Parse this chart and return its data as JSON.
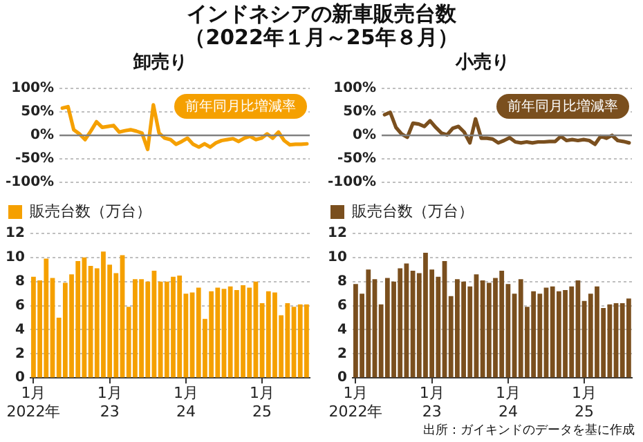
{
  "chart_data": [
    {
      "type": "other",
      "title": "インドネシアの新車販売台数",
      "subtitle": "（2022年１月～25年８月）"
    },
    {
      "type": "line",
      "title": "卸売り",
      "categories": [
        null,
        null,
        null,
        null,
        null,
        null,
        null,
        null,
        null,
        null,
        null,
        null,
        null,
        null,
        null,
        null,
        null,
        null,
        null,
        null,
        null,
        null,
        null,
        null,
        null,
        null,
        null,
        null,
        null,
        null,
        null,
        null,
        null,
        null,
        null,
        null,
        null,
        null,
        null,
        null,
        null,
        null,
        null,
        null
      ],
      "series": [
        {
          "name": "前年同月比増減率",
          "color": "#f5a000",
          "values": [
            58,
            61,
            12,
            3,
            -9,
            9,
            29,
            17,
            19,
            21,
            7,
            10,
            12,
            9,
            5,
            -30,
            65,
            5,
            -6,
            -9,
            -19,
            -13,
            -6,
            -19,
            -25,
            -18,
            -25,
            -16,
            -11,
            -9,
            -7,
            -13,
            -6,
            -2,
            -9,
            -6,
            3,
            -6,
            7,
            -11,
            -20,
            -19,
            -19,
            -18
          ]
        }
      ],
      "ylim": [
        -100,
        100
      ],
      "yticks": [
        {
          "value": -100,
          "label": "-100%"
        },
        {
          "value": -50,
          "label": "-50%"
        },
        {
          "value": 0,
          "label": "0%"
        },
        {
          "value": 50,
          "label": "50%"
        },
        {
          "value": 100,
          "label": "100%"
        }
      ],
      "ref_lines": [
        {
          "axis": "y",
          "value": 0,
          "color": "#808080"
        }
      ],
      "grid": "y",
      "legend": "top right",
      "tick_labels": "y",
      "marker": "none"
    },
    {
      "type": "line",
      "title": "小売り",
      "categories": [
        null,
        null,
        null,
        null,
        null,
        null,
        null,
        null,
        null,
        null,
        null,
        null,
        null,
        null,
        null,
        null,
        null,
        null,
        null,
        null,
        null,
        null,
        null,
        null,
        null,
        null,
        null,
        null,
        null,
        null,
        null,
        null,
        null,
        null,
        null,
        null,
        null,
        null,
        null,
        null,
        null,
        null,
        null,
        null
      ],
      "series": [
        {
          "name": "前年同月比増減率",
          "color": "#7a4f1e",
          "values": [
            44,
            49,
            17,
            3,
            -4,
            26,
            24,
            19,
            31,
            17,
            5,
            1,
            15,
            19,
            7,
            -16,
            35,
            -6,
            -6,
            -8,
            -16,
            -11,
            -5,
            -14,
            -16,
            -14,
            -16,
            -14,
            -14,
            -13,
            -13,
            -2,
            -11,
            -9,
            -11,
            -9,
            -11,
            -19,
            -2,
            -6,
            0,
            -11,
            -13,
            -16
          ]
        }
      ],
      "ylim": [
        -100,
        100
      ],
      "yticks": [
        {
          "value": -100,
          "label": "-100%"
        },
        {
          "value": -50,
          "label": "-50%"
        },
        {
          "value": 0,
          "label": "0%"
        },
        {
          "value": 50,
          "label": "50%"
        },
        {
          "value": 100,
          "label": "100%"
        }
      ],
      "ref_lines": [
        {
          "axis": "y",
          "value": 0,
          "color": "#808080"
        }
      ],
      "grid": "y",
      "legend": "top right",
      "tick_labels": "y",
      "marker": "none"
    },
    {
      "type": "bar",
      "categories": [
        "1月\n2022年",
        null,
        null,
        null,
        null,
        null,
        null,
        null,
        null,
        null,
        null,
        null,
        "1月\n23",
        null,
        null,
        null,
        null,
        null,
        null,
        null,
        null,
        null,
        null,
        null,
        "1月\n24",
        null,
        null,
        null,
        null,
        null,
        null,
        null,
        null,
        null,
        null,
        null,
        "1月\n25",
        null,
        null,
        null,
        null,
        null,
        null,
        null
      ],
      "series": [
        {
          "name": "販売台数（万台）",
          "color": "#f5a000",
          "values": [
            8.4,
            8.1,
            9.9,
            8.3,
            5.0,
            7.9,
            8.6,
            9.7,
            10.0,
            9.3,
            9.1,
            10.5,
            9.4,
            8.7,
            10.2,
            5.9,
            8.2,
            8.2,
            8.0,
            8.9,
            8.0,
            8.0,
            8.4,
            8.5,
            7.0,
            7.1,
            7.5,
            4.9,
            7.2,
            7.5,
            7.4,
            7.6,
            7.3,
            7.7,
            7.5,
            8.0,
            6.2,
            7.2,
            7.1,
            5.2,
            6.2,
            5.9,
            6.1,
            6.1
          ]
        }
      ],
      "ylim": [
        0,
        12
      ],
      "yticks": [
        0,
        2,
        4,
        6,
        8,
        10,
        12
      ],
      "grid": "y",
      "legend": "top left"
    },
    {
      "type": "bar",
      "categories": [
        "1月\n2022年",
        null,
        null,
        null,
        null,
        null,
        null,
        null,
        null,
        null,
        null,
        null,
        "1月\n23",
        null,
        null,
        null,
        null,
        null,
        null,
        null,
        null,
        null,
        null,
        null,
        "1月\n24",
        null,
        null,
        null,
        null,
        null,
        null,
        null,
        null,
        null,
        null,
        null,
        "1月\n25",
        null,
        null,
        null,
        null,
        null,
        null,
        null
      ],
      "series": [
        {
          "name": "販売台数（万台）",
          "color": "#7a4f1e",
          "values": [
            7.8,
            7.0,
            9.0,
            8.2,
            6.1,
            8.3,
            8.0,
            9.1,
            9.5,
            8.9,
            8.7,
            10.4,
            9.0,
            8.4,
            9.7,
            6.8,
            8.2,
            8.0,
            7.6,
            8.6,
            8.1,
            7.9,
            8.3,
            8.9,
            7.8,
            7.0,
            8.2,
            5.9,
            7.2,
            7.0,
            7.5,
            7.6,
            7.2,
            7.3,
            7.6,
            8.1,
            6.4,
            7.0,
            7.6,
            5.8,
            6.1,
            6.2,
            6.2,
            6.6
          ]
        }
      ],
      "ylim": [
        0,
        12
      ],
      "yticks": [
        0,
        2,
        4,
        6,
        8,
        10,
        12
      ],
      "grid": "y",
      "legend": "top left",
      "annotations": [
        "出所：ガイキンドのデータを基に作成"
      ]
    }
  ]
}
